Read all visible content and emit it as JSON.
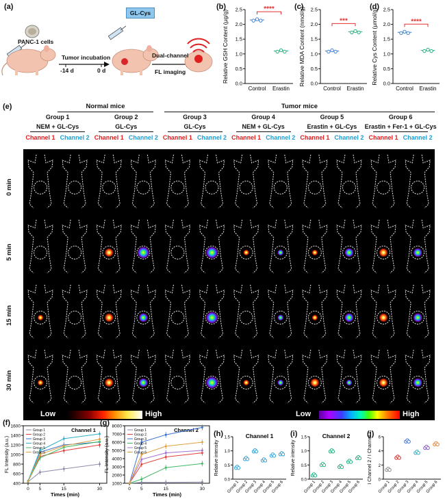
{
  "panel_a": {
    "label": "(a)",
    "cells_label": "PANC-1 cells",
    "probe_label": "GL-Cys",
    "step1": "Tumor incubation",
    "day_start": "-14 d",
    "day_zero": "0 d",
    "step2_line1": "Dual-channel",
    "step2_line2": "FL imaging"
  },
  "panel_e": {
    "label": "(e)",
    "normal_mice": "Normal mice",
    "tumor_mice": "Tumor mice",
    "groups": [
      {
        "name": "Group 1",
        "treatment": "NEM + GL-Cys"
      },
      {
        "name": "Group 2",
        "treatment": "GL-Cys"
      },
      {
        "name": "Group 3",
        "treatment": "GL-Cys"
      },
      {
        "name": "Group 4",
        "treatment": "NEM + GL-Cys"
      },
      {
        "name": "Group 5",
        "treatment": "Erastin + GL-Cys"
      },
      {
        "name": "Group 6",
        "treatment": "Erastin + Fer-1 + GL-Cys"
      }
    ],
    "channel1": "Channel 1",
    "channel2": "Channel 2",
    "times": [
      "0 min",
      "5 min",
      "15 min",
      "30 min"
    ],
    "low": "Low",
    "high": "High",
    "signal_levels": [
      [
        0,
        0,
        0,
        0,
        0,
        0,
        0,
        0,
        0,
        0,
        0,
        0
      ],
      [
        0,
        0,
        2,
        3,
        0,
        3,
        1,
        1,
        1,
        2,
        2,
        2
      ],
      [
        1,
        0,
        2,
        2,
        0,
        3,
        0,
        1,
        1,
        2,
        2,
        2
      ],
      [
        1,
        0,
        2,
        2,
        0,
        3,
        1,
        1,
        2,
        1,
        2,
        2
      ]
    ],
    "colors": {
      "channel1_low": "#8a0000",
      "channel1_high": "#ffe84a",
      "channel2_low": "#5a00a0",
      "channel2_high": "#ff0000"
    }
  },
  "chart_data": [
    {
      "id": "b",
      "label": "(b)",
      "type": "scatter",
      "categories": [
        "Control",
        "Erastin"
      ],
      "values": [
        2.15,
        1.1
      ],
      "ylabel": "Relative GSH Content (μg/g)",
      "ylim": [
        0,
        2.5
      ],
      "yticks": [
        "0.0",
        "0.5",
        "1.0",
        "1.5",
        "2.0",
        "2.5"
      ],
      "significance": "****",
      "colors": [
        "#3a7fd0",
        "#1fb07a"
      ]
    },
    {
      "id": "c",
      "label": "(c)",
      "type": "scatter",
      "categories": [
        "Control",
        "Erastin"
      ],
      "values": [
        1.1,
        1.75
      ],
      "ylabel": "Relative MDA Content (nmol/g)",
      "ylim": [
        0,
        2.5
      ],
      "yticks": [
        "0.0",
        "0.5",
        "1.0",
        "1.5",
        "2.0",
        "2.5"
      ],
      "significance": "***",
      "colors": [
        "#3a7fd0",
        "#1fb07a"
      ]
    },
    {
      "id": "d",
      "label": "(d)",
      "type": "scatter",
      "categories": [
        "Control",
        "Erastin"
      ],
      "values": [
        1.73,
        1.12
      ],
      "ylabel": "Relative Cys Content (μmol/g)",
      "ylim": [
        0,
        2.5
      ],
      "yticks": [
        "0.0",
        "0.5",
        "1.0",
        "1.5",
        "2.0",
        "2.5"
      ],
      "significance": "****",
      "colors": [
        "#3a7fd0",
        "#1fb07a"
      ]
    },
    {
      "id": "f",
      "label": "(f)",
      "type": "line",
      "title": "Channel 1",
      "x": [
        0,
        5,
        15,
        30
      ],
      "xticks": [
        "0",
        "5",
        "15",
        "30"
      ],
      "xlabel": "Times (min)",
      "ylabel": "FL Intensity (a.u.)",
      "ylim": [
        400,
        1600
      ],
      "yticks": [
        "400",
        "600",
        "800",
        "1000",
        "1200",
        "1400",
        "1600"
      ],
      "series": [
        {
          "name": "Group 1",
          "values": [
            430,
            630,
            700,
            800
          ],
          "color": "#8a8aa8"
        },
        {
          "name": "Group 2",
          "values": [
            440,
            960,
            1080,
            1200
          ],
          "color": "#e0403a"
        },
        {
          "name": "Group 3",
          "values": [
            450,
            1050,
            1200,
            1260
          ],
          "color": "#3a6fd0"
        },
        {
          "name": "Group 4",
          "values": [
            450,
            1080,
            1330,
            1430
          ],
          "color": "#2ab0c8"
        },
        {
          "name": "Group 5",
          "values": [
            440,
            930,
            1150,
            1270
          ],
          "color": "#40b860"
        },
        {
          "name": "Group 6",
          "values": [
            440,
            1000,
            1180,
            1320
          ],
          "color": "#e0a040"
        }
      ]
    },
    {
      "id": "g",
      "label": "(g)",
      "type": "line",
      "title": "Channel 2",
      "x": [
        0,
        5,
        15,
        30
      ],
      "xticks": [
        "0",
        "5",
        "15",
        "30"
      ],
      "xlabel": "Times (min)",
      "ylabel": "FL Intensity (a.u.)",
      "ylim": [
        1000,
        8000
      ],
      "yticks": [
        "1000",
        "2000",
        "3000",
        "4000",
        "5000",
        "6000",
        "7000",
        "8000"
      ],
      "series": [
        {
          "name": "Group 1",
          "values": [
            1000,
            1100,
            1100,
            1150
          ],
          "color": "#8a8aa8"
        },
        {
          "name": "Group 2",
          "values": [
            1000,
            3300,
            4200,
            4700
          ],
          "color": "#e0403a"
        },
        {
          "name": "Group 3",
          "values": [
            1000,
            6000,
            6900,
            7800
          ],
          "color": "#3a6fd0"
        },
        {
          "name": "Group 4",
          "values": [
            1000,
            1500,
            2900,
            3400
          ],
          "color": "#40b860"
        },
        {
          "name": "Group 5",
          "values": [
            1000,
            3900,
            4700,
            5000
          ],
          "color": "#a070d0"
        },
        {
          "name": "Group 6",
          "values": [
            1000,
            4500,
            5500,
            6000
          ],
          "color": "#e0a040"
        }
      ]
    },
    {
      "id": "h",
      "label": "(h)",
      "type": "scatter",
      "title": "Channel 1",
      "categories": [
        "Group 1",
        "Group 2",
        "Group 3",
        "Group 4",
        "Group 5",
        "Group 6"
      ],
      "values": [
        0.42,
        0.73,
        1.0,
        0.68,
        0.85,
        0.9
      ],
      "ylabel": "Relative intensity",
      "ylim": [
        0,
        1.5
      ],
      "yticks": [
        "0.0",
        "0.5",
        "1.0",
        "1.5"
      ],
      "colors": [
        "#2a9fd8",
        "#2a9fd8",
        "#2a9fd8",
        "#2a9fd8",
        "#2a9fd8",
        "#2a9fd8"
      ]
    },
    {
      "id": "i",
      "label": "(i)",
      "type": "scatter",
      "title": "Channel 2",
      "categories": [
        "Group 1",
        "Group 2",
        "Group 3",
        "Group 4",
        "Group 5",
        "Group 6"
      ],
      "values": [
        0.15,
        0.52,
        1.0,
        0.45,
        0.63,
        0.76
      ],
      "ylabel": "Relative intensity",
      "ylim": [
        0,
        1.5
      ],
      "yticks": [
        "0.0",
        "0.5",
        "1.0",
        "1.5"
      ],
      "colors": [
        "#1fb07a",
        "#1fb07a",
        "#1fb07a",
        "#1fb07a",
        "#1fb07a",
        "#1fb07a"
      ]
    },
    {
      "id": "j",
      "label": "(j)",
      "type": "scatter",
      "categories": [
        "Group 1",
        "Group 2",
        "Group 3",
        "Group 4",
        "Group 5",
        "Group 6"
      ],
      "values": [
        1.4,
        3.1,
        5.4,
        3.8,
        4.5,
        5.0
      ],
      "ylabel": "I Channel 2 / I Channel 1",
      "ylim": [
        0,
        6
      ],
      "yticks": [
        "0",
        "2",
        "4",
        "6"
      ],
      "colors": [
        "#8a8a8a",
        "#d02020",
        "#3a6fd0",
        "#2aa8c0",
        "#8050c0",
        "#e08030"
      ]
    }
  ]
}
